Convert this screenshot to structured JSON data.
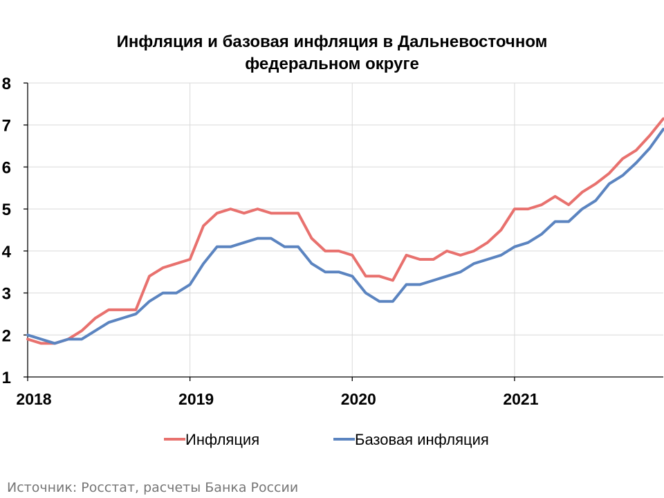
{
  "chart_data": {
    "type": "line",
    "title_line1": "Инфляция и базовая инфляция в Дальневосточном",
    "title_line2": "федеральном округе",
    "ylim": [
      1,
      8
    ],
    "yticks": [
      "1",
      "2",
      "3",
      "4",
      "5",
      "6",
      "7",
      "8"
    ],
    "xlim": [
      0,
      47
    ],
    "x_year_labels": [
      "2018",
      "2019",
      "2020",
      "2021"
    ],
    "grid": "horizontal and vertical",
    "legend_position": "bottom",
    "series": [
      {
        "name": "Инфляция",
        "color": "#e8716e",
        "values": [
          1.9,
          1.8,
          1.8,
          1.9,
          2.1,
          2.4,
          2.6,
          2.6,
          2.6,
          3.4,
          3.6,
          3.7,
          3.8,
          4.6,
          4.9,
          5.0,
          4.9,
          5.0,
          4.9,
          4.9,
          4.9,
          4.3,
          4.0,
          4.0,
          3.9,
          3.4,
          3.4,
          3.3,
          3.9,
          3.8,
          3.8,
          4.0,
          3.9,
          4.0,
          4.2,
          4.5,
          5.0,
          5.0,
          5.1,
          5.3,
          5.1,
          5.4,
          5.6,
          5.85,
          6.2,
          6.4,
          6.75,
          7.15
        ]
      },
      {
        "name": "Базовая инфляция",
        "color": "#5b84c0",
        "values": [
          2.0,
          1.9,
          1.8,
          1.9,
          1.9,
          2.1,
          2.3,
          2.4,
          2.5,
          2.8,
          3.0,
          3.0,
          3.2,
          3.7,
          4.1,
          4.1,
          4.2,
          4.3,
          4.3,
          4.1,
          4.1,
          3.7,
          3.5,
          3.5,
          3.4,
          3.0,
          2.8,
          2.8,
          3.2,
          3.2,
          3.3,
          3.4,
          3.5,
          3.7,
          3.8,
          3.9,
          4.1,
          4.2,
          4.4,
          4.7,
          4.7,
          5.0,
          5.2,
          5.6,
          5.8,
          6.1,
          6.45,
          6.9
        ]
      }
    ]
  },
  "source_text": "Источник: Росстат, расчеты Банка России"
}
